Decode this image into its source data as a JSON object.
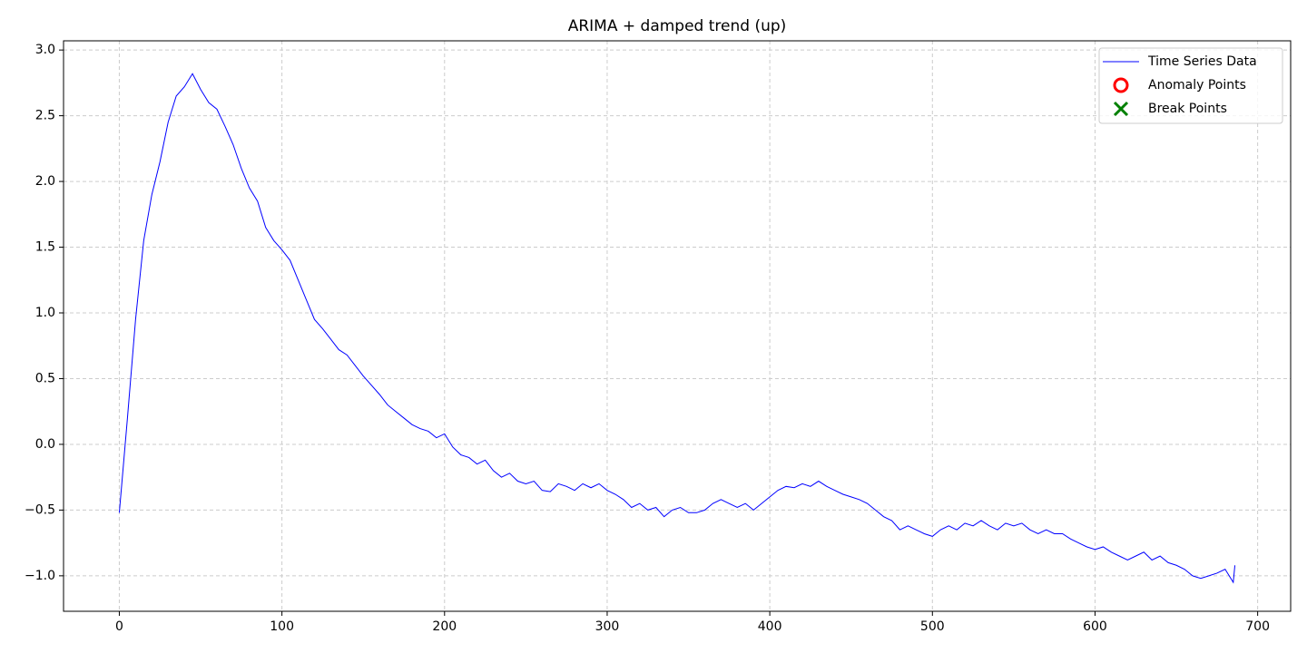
{
  "chart_data": {
    "type": "line",
    "title": "ARIMA + damped trend (up)",
    "xlim": [
      -34.3,
      720.3
    ],
    "ylim": [
      -1.27,
      3.07
    ],
    "xticks": [
      0,
      100,
      200,
      300,
      400,
      500,
      600,
      700
    ],
    "yticks": [
      {
        "value": -1.0,
        "label": "−1.0"
      },
      {
        "value": -0.5,
        "label": "−0.5"
      },
      {
        "value": 0.0,
        "label": "0.0"
      },
      {
        "value": 0.5,
        "label": "0.5"
      },
      {
        "value": 1.0,
        "label": "1.0"
      },
      {
        "value": 1.5,
        "label": "1.5"
      },
      {
        "value": 2.0,
        "label": "2.0"
      },
      {
        "value": 2.5,
        "label": "2.5"
      },
      {
        "value": 3.0,
        "label": "3.0"
      }
    ],
    "grid": true,
    "legend": "upper right",
    "series": [
      {
        "name": "Time Series Data",
        "color": "#0000ff",
        "kind": "line",
        "x": [
          0,
          5,
          10,
          15,
          20,
          25,
          30,
          35,
          40,
          45,
          50,
          55,
          60,
          65,
          70,
          75,
          80,
          85,
          90,
          95,
          100,
          105,
          110,
          115,
          120,
          125,
          130,
          135,
          140,
          145,
          150,
          155,
          160,
          165,
          170,
          175,
          180,
          185,
          190,
          195,
          200,
          205,
          210,
          215,
          220,
          225,
          230,
          235,
          240,
          245,
          250,
          255,
          260,
          265,
          270,
          275,
          280,
          285,
          290,
          295,
          300,
          305,
          310,
          315,
          320,
          325,
          330,
          335,
          340,
          345,
          350,
          355,
          360,
          365,
          370,
          375,
          380,
          385,
          390,
          395,
          400,
          405,
          410,
          415,
          420,
          425,
          430,
          435,
          440,
          445,
          450,
          455,
          460,
          465,
          470,
          475,
          480,
          485,
          490,
          495,
          500,
          505,
          510,
          515,
          520,
          525,
          530,
          535,
          540,
          545,
          550,
          555,
          560,
          565,
          570,
          575,
          580,
          585,
          590,
          595,
          600,
          605,
          610,
          615,
          620,
          625,
          630,
          635,
          640,
          645,
          650,
          655,
          660,
          665,
          670,
          675,
          680,
          685,
          686
        ],
        "values": [
          -0.52,
          0.2,
          0.95,
          1.55,
          1.9,
          2.15,
          2.45,
          2.65,
          2.72,
          2.82,
          2.7,
          2.6,
          2.55,
          2.42,
          2.28,
          2.1,
          1.95,
          1.85,
          1.65,
          1.55,
          1.48,
          1.4,
          1.25,
          1.1,
          0.95,
          0.88,
          0.8,
          0.72,
          0.68,
          0.6,
          0.52,
          0.45,
          0.38,
          0.3,
          0.25,
          0.2,
          0.15,
          0.12,
          0.1,
          0.05,
          0.08,
          -0.02,
          -0.08,
          -0.1,
          -0.15,
          -0.12,
          -0.2,
          -0.25,
          -0.22,
          -0.28,
          -0.3,
          -0.28,
          -0.35,
          -0.36,
          -0.3,
          -0.32,
          -0.35,
          -0.3,
          -0.33,
          -0.3,
          -0.35,
          -0.38,
          -0.42,
          -0.48,
          -0.45,
          -0.5,
          -0.48,
          -0.55,
          -0.5,
          -0.48,
          -0.52,
          -0.52,
          -0.5,
          -0.45,
          -0.42,
          -0.45,
          -0.48,
          -0.45,
          -0.5,
          -0.45,
          -0.4,
          -0.35,
          -0.32,
          -0.33,
          -0.3,
          -0.32,
          -0.28,
          -0.32,
          -0.35,
          -0.38,
          -0.4,
          -0.42,
          -0.45,
          -0.5,
          -0.55,
          -0.58,
          -0.65,
          -0.62,
          -0.65,
          -0.68,
          -0.7,
          -0.65,
          -0.62,
          -0.65,
          -0.6,
          -0.62,
          -0.58,
          -0.62,
          -0.65,
          -0.6,
          -0.62,
          -0.6,
          -0.65,
          -0.68,
          -0.65,
          -0.68,
          -0.68,
          -0.72,
          -0.75,
          -0.78,
          -0.8,
          -0.78,
          -0.82,
          -0.85,
          -0.88,
          -0.85,
          -0.82,
          -0.88,
          -0.85,
          -0.9,
          -0.92,
          -0.95,
          -1.0,
          -1.02,
          -1.0,
          -0.98,
          -0.95,
          -1.05,
          -0.92
        ]
      },
      {
        "name": "Anomaly Points",
        "color": "#ff0000",
        "kind": "scatter",
        "marker": "o",
        "x": [],
        "values": []
      },
      {
        "name": "Break Points",
        "color": "#008000",
        "kind": "scatter",
        "marker": "x",
        "x": [],
        "values": []
      }
    ]
  }
}
